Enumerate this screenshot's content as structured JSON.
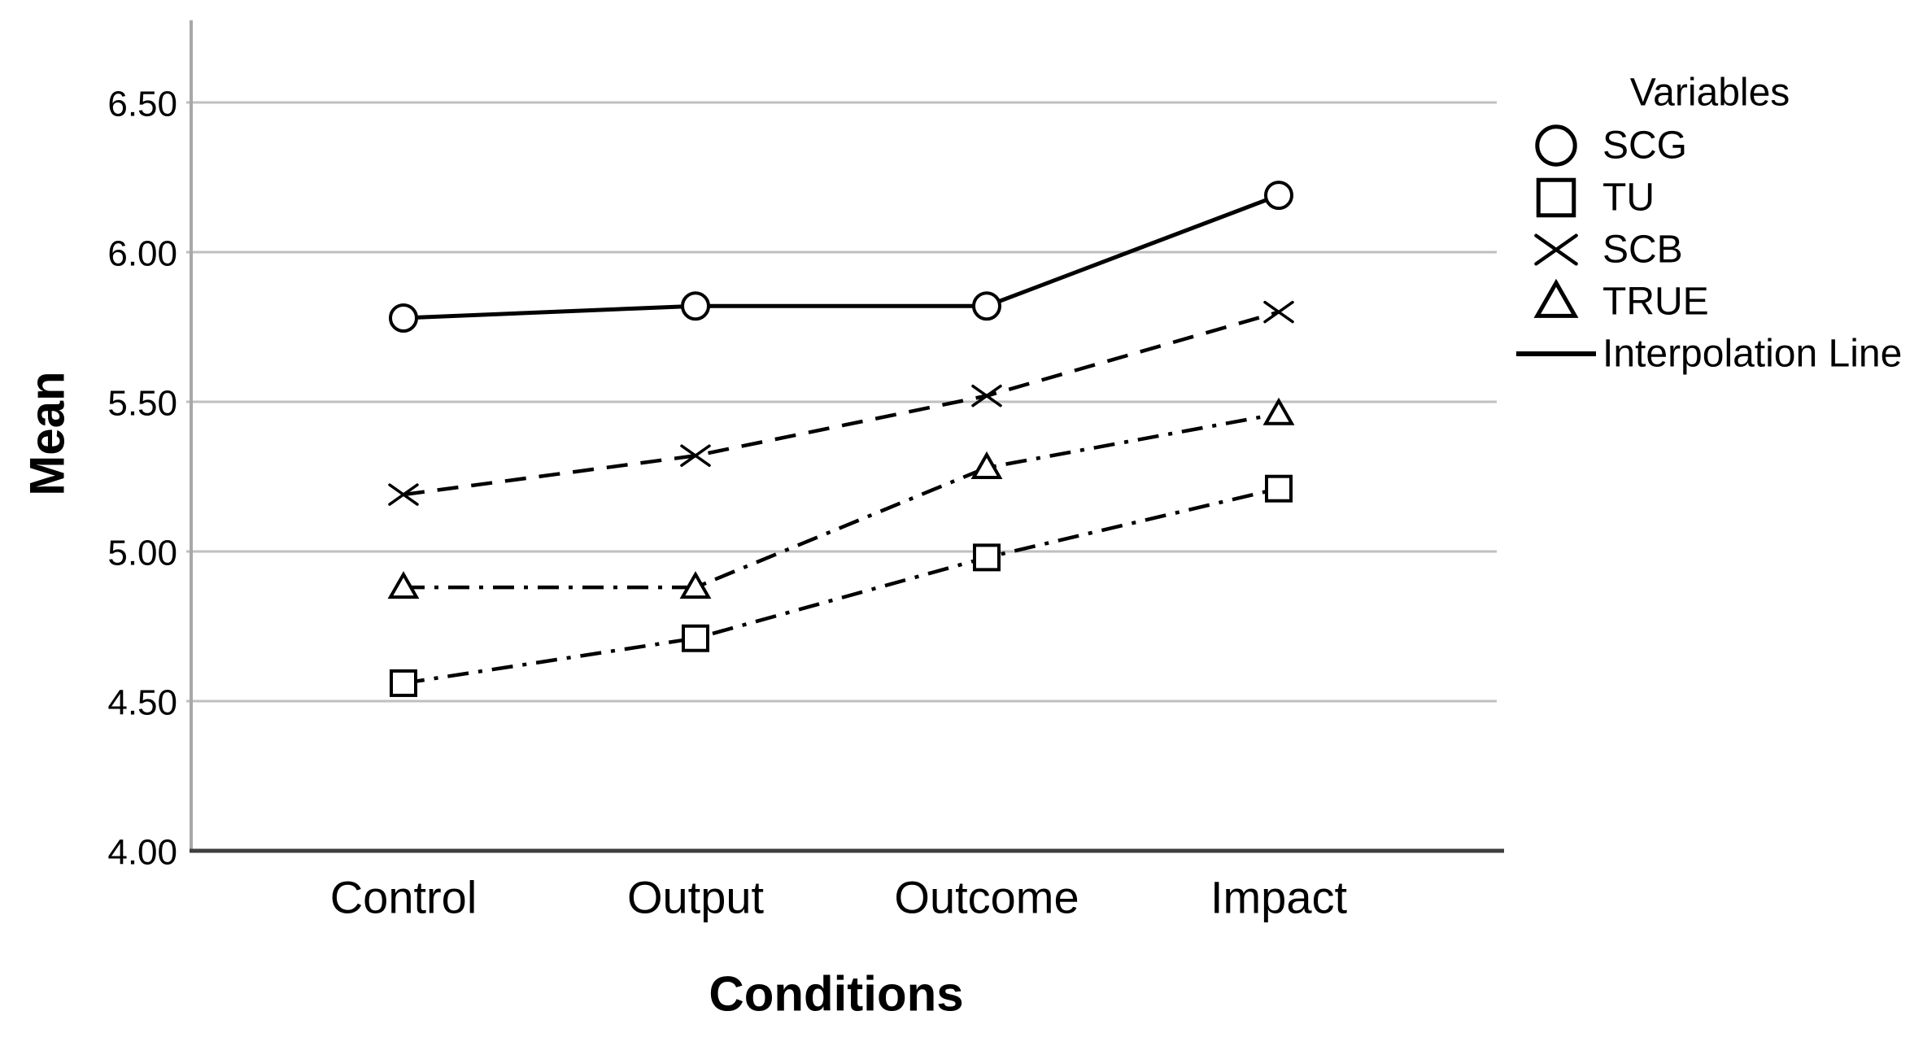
{
  "chart_data": {
    "type": "line",
    "title": "",
    "xlabel": "Conditions",
    "ylabel": "Mean",
    "categories": [
      "Control",
      "Output",
      "Outcome",
      "Impact"
    ],
    "y_ticks": [
      "6.50",
      "6.00",
      "5.50",
      "5.00",
      "4.50",
      "4.00"
    ],
    "ylim": [
      4.0,
      6.78
    ],
    "grid": true,
    "series": [
      {
        "name": "SCG",
        "marker": "circle",
        "line_style": "solid",
        "values": [
          5.78,
          5.82,
          5.82,
          6.19
        ]
      },
      {
        "name": "TU",
        "marker": "square",
        "line_style": "dash-dot",
        "values": [
          4.56,
          4.71,
          4.98,
          5.21
        ]
      },
      {
        "name": "SCB",
        "marker": "x",
        "line_style": "dashed",
        "values": [
          5.19,
          5.32,
          5.52,
          5.8
        ]
      },
      {
        "name": "TRUE",
        "marker": "triangle",
        "line_style": "dash-dot",
        "values": [
          4.88,
          4.88,
          5.28,
          5.46
        ]
      }
    ],
    "legend": {
      "title": "Variables",
      "position": "right",
      "entries": [
        {
          "label": "SCG",
          "marker": "circle"
        },
        {
          "label": "TU",
          "marker": "square"
        },
        {
          "label": "SCB",
          "marker": "x"
        },
        {
          "label": "TRUE",
          "marker": "triangle"
        },
        {
          "label": "Interpolation Line",
          "marker": "line"
        }
      ]
    },
    "colors": {
      "series": "#000000",
      "grid": "#bfbfbf",
      "y_axis": "#a8a8a8",
      "x_axis": "#3f3f3f",
      "text": "#000000",
      "background": "#ffffff"
    }
  }
}
